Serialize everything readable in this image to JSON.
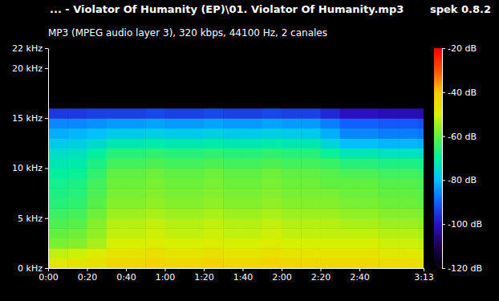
{
  "chart_data": {
    "type": "heatmap",
    "title": "... - Violator Of Humanity (EP)\\01. Violator Of Humanity.mp3",
    "subtitle": "MP3 (MPEG audio layer 3), 320 kbps, 44100 Hz, 2 canales",
    "annotations": [
      "spek 0.8.2"
    ],
    "xlim": [
      0,
      193
    ],
    "ylim": [
      0,
      22
    ],
    "xticks": [
      {
        "value": 0,
        "label": "0:00"
      },
      {
        "value": 20,
        "label": "0:20"
      },
      {
        "value": 40,
        "label": "0:40"
      },
      {
        "value": 60,
        "label": "1:00"
      },
      {
        "value": 80,
        "label": "1:20"
      },
      {
        "value": 100,
        "label": "1:40"
      },
      {
        "value": 120,
        "label": "2:00"
      },
      {
        "value": 140,
        "label": "2:20"
      },
      {
        "value": 160,
        "label": "2:40"
      },
      {
        "value": 193,
        "label": "3:13"
      }
    ],
    "yticks": [
      {
        "value": 0,
        "label": "0 kHz"
      },
      {
        "value": 5,
        "label": "5 kHz"
      },
      {
        "value": 10,
        "label": "10 kHz"
      },
      {
        "value": 15,
        "label": "15 kHz"
      },
      {
        "value": 20,
        "label": "20 kHz"
      },
      {
        "value": 22,
        "label": "22 kHz"
      }
    ],
    "time_bins": [
      0,
      10,
      20,
      30,
      40,
      50,
      60,
      70,
      80,
      90,
      100,
      110,
      120,
      130,
      140,
      150,
      160,
      170,
      180,
      190,
      193
    ],
    "freq_bins": [
      0,
      1,
      2,
      3,
      4,
      5,
      6,
      7,
      8,
      9,
      10,
      11,
      12,
      13,
      14,
      15,
      16,
      22
    ],
    "cells": [
      [
        -48,
        -47,
        -46,
        -44,
        -44,
        -43,
        -44,
        -44,
        -43,
        -44,
        -44,
        -43,
        -44,
        -44,
        -44,
        -44,
        -44,
        -45,
        -45,
        -46
      ],
      [
        -52,
        -51,
        -49,
        -47,
        -47,
        -46,
        -47,
        -47,
        -46,
        -47,
        -47,
        -46,
        -47,
        -47,
        -47,
        -47,
        -47,
        -48,
        -48,
        -49
      ],
      [
        -58,
        -57,
        -54,
        -50,
        -50,
        -49,
        -50,
        -50,
        -49,
        -50,
        -50,
        -49,
        -50,
        -50,
        -50,
        -50,
        -50,
        -51,
        -51,
        -52
      ],
      [
        -60,
        -59,
        -56,
        -52,
        -52,
        -51,
        -52,
        -52,
        -51,
        -52,
        -52,
        -51,
        -52,
        -52,
        -52,
        -52,
        -52,
        -53,
        -53,
        -54
      ],
      [
        -62,
        -61,
        -57,
        -53,
        -53,
        -52,
        -53,
        -53,
        -52,
        -53,
        -53,
        -52,
        -53,
        -53,
        -53,
        -54,
        -54,
        -55,
        -55,
        -56
      ],
      [
        -64,
        -63,
        -59,
        -55,
        -55,
        -54,
        -55,
        -55,
        -54,
        -55,
        -55,
        -54,
        -55,
        -55,
        -55,
        -56,
        -56,
        -57,
        -57,
        -58
      ],
      [
        -66,
        -65,
        -61,
        -57,
        -57,
        -56,
        -57,
        -57,
        -56,
        -57,
        -57,
        -56,
        -57,
        -57,
        -57,
        -58,
        -58,
        -59,
        -59,
        -60
      ],
      [
        -67,
        -66,
        -62,
        -58,
        -58,
        -57,
        -58,
        -58,
        -57,
        -58,
        -58,
        -57,
        -58,
        -58,
        -58,
        -59,
        -59,
        -60,
        -60,
        -61
      ],
      [
        -68,
        -67,
        -63,
        -59,
        -59,
        -58,
        -59,
        -59,
        -58,
        -59,
        -59,
        -58,
        -59,
        -59,
        -60,
        -60,
        -60,
        -61,
        -61,
        -62
      ],
      [
        -70,
        -69,
        -65,
        -60,
        -60,
        -59,
        -60,
        -60,
        -59,
        -60,
        -60,
        -59,
        -60,
        -60,
        -61,
        -62,
        -62,
        -63,
        -63,
        -64
      ],
      [
        -72,
        -71,
        -67,
        -63,
        -63,
        -62,
        -63,
        -63,
        -62,
        -63,
        -63,
        -62,
        -63,
        -63,
        -64,
        -66,
        -66,
        -67,
        -67,
        -68
      ],
      [
        -74,
        -73,
        -70,
        -66,
        -66,
        -65,
        -66,
        -66,
        -65,
        -66,
        -66,
        -65,
        -66,
        -66,
        -69,
        -72,
        -72,
        -73,
        -73,
        -74
      ],
      [
        -78,
        -77,
        -75,
        -72,
        -72,
        -71,
        -72,
        -72,
        -71,
        -72,
        -72,
        -71,
        -72,
        -72,
        -76,
        -80,
        -80,
        -81,
        -81,
        -82
      ],
      [
        -82,
        -81,
        -80,
        -78,
        -78,
        -77,
        -78,
        -78,
        -77,
        -78,
        -78,
        -77,
        -78,
        -78,
        -82,
        -86,
        -86,
        -87,
        -87,
        -88
      ],
      [
        -86,
        -86,
        -85,
        -84,
        -84,
        -83,
        -84,
        -84,
        -83,
        -84,
        -84,
        -83,
        -84,
        -84,
        -87,
        -90,
        -90,
        -91,
        -91,
        -92
      ],
      [
        -95,
        -95,
        -94,
        -94,
        -94,
        -93,
        -94,
        -94,
        -93,
        -94,
        -94,
        -93,
        -94,
        -94,
        -97,
        -100,
        -100,
        -101,
        -101,
        -102
      ],
      [
        -120,
        -120,
        -120,
        -120,
        -120,
        -120,
        -120,
        -120,
        -120,
        -120,
        -120,
        -120,
        -120,
        -120,
        -120,
        -120,
        -120,
        -120,
        -120,
        -120
      ]
    ],
    "color_lim": [
      -120,
      -20
    ],
    "color_ticks": [
      {
        "value": -20,
        "label": "-20 dB"
      },
      {
        "value": -40,
        "label": "-40 dB"
      },
      {
        "value": -60,
        "label": "-60 dB"
      },
      {
        "value": -80,
        "label": "-80 dB"
      },
      {
        "value": -100,
        "label": "-100 dB"
      },
      {
        "value": -120,
        "label": "-120 dB"
      }
    ]
  }
}
